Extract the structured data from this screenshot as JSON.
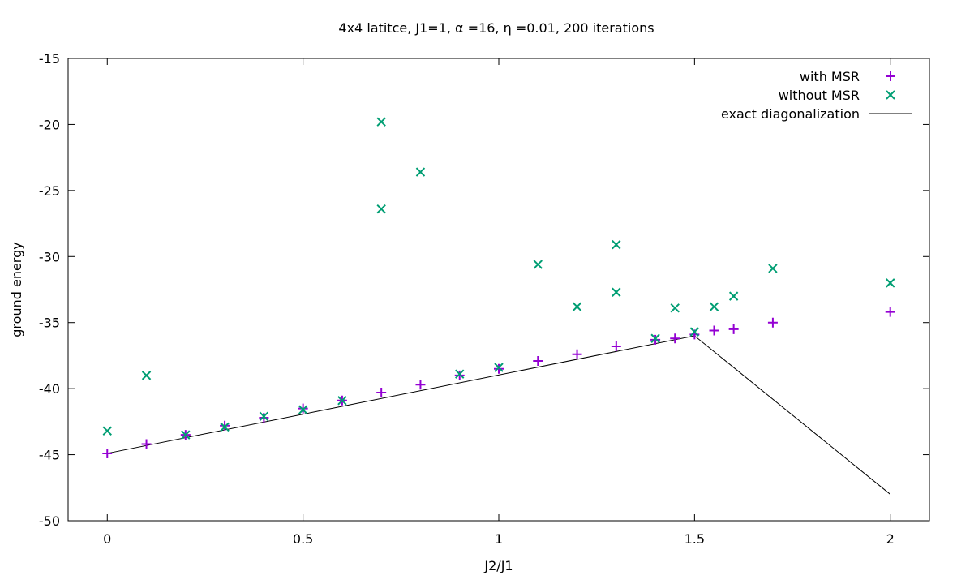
{
  "chart_data": {
    "type": "scatter",
    "title": "4x4 latitce, J1=1, α =16, η =0.01, 200 iterations",
    "xlabel": "J2/J1",
    "ylabel": "ground energy",
    "xlim": [
      -0.1,
      2.1
    ],
    "ylim": [
      -50,
      -15
    ],
    "xticks": [
      0,
      0.5,
      1,
      1.5,
      2
    ],
    "xtick_labels": [
      "0",
      "0.5",
      "1",
      "1.5",
      "2"
    ],
    "yticks": [
      -50,
      -45,
      -40,
      -35,
      -30,
      -25,
      -20,
      -15
    ],
    "ytick_labels": [
      "-50",
      "-45",
      "-40",
      "-35",
      "-30",
      "-25",
      "-20",
      "-15"
    ],
    "grid": false,
    "legend_position": "top-right",
    "series": [
      {
        "name": "with MSR",
        "marker": "plus",
        "color": "#9400D3",
        "points": [
          [
            0,
            -44.9
          ],
          [
            0.1,
            -44.2
          ],
          [
            0.2,
            -43.5
          ],
          [
            0.3,
            -42.8
          ],
          [
            0.4,
            -42.2
          ],
          [
            0.5,
            -41.5
          ],
          [
            0.6,
            -40.9
          ],
          [
            0.7,
            -40.3
          ],
          [
            0.8,
            -39.7
          ],
          [
            0.9,
            -39.0
          ],
          [
            1.0,
            -38.5
          ],
          [
            1.1,
            -37.9
          ],
          [
            1.2,
            -37.4
          ],
          [
            1.3,
            -36.8
          ],
          [
            1.4,
            -36.3
          ],
          [
            1.45,
            -36.2
          ],
          [
            1.5,
            -35.9
          ],
          [
            1.55,
            -35.6
          ],
          [
            1.6,
            -35.5
          ],
          [
            1.7,
            -35.0
          ],
          [
            2.0,
            -34.2
          ]
        ]
      },
      {
        "name": "without MSR",
        "marker": "cross",
        "color": "#009E73",
        "points": [
          [
            0,
            -43.2
          ],
          [
            0.1,
            -39.0
          ],
          [
            0.2,
            -43.5
          ],
          [
            0.3,
            -42.9
          ],
          [
            0.4,
            -42.1
          ],
          [
            0.5,
            -41.6
          ],
          [
            0.6,
            -40.9
          ],
          [
            0.7,
            -26.4
          ],
          [
            0.7,
            -19.8
          ],
          [
            0.8,
            -23.6
          ],
          [
            0.9,
            -38.9
          ],
          [
            1.0,
            -38.4
          ],
          [
            1.1,
            -30.6
          ],
          [
            1.2,
            -33.8
          ],
          [
            1.3,
            -32.7
          ],
          [
            1.3,
            -29.1
          ],
          [
            1.4,
            -36.2
          ],
          [
            1.45,
            -33.9
          ],
          [
            1.5,
            -35.7
          ],
          [
            1.55,
            -33.8
          ],
          [
            1.6,
            -33.0
          ],
          [
            1.7,
            -30.9
          ],
          [
            2.0,
            -32.0
          ]
        ]
      },
      {
        "name": "exact diagonalization",
        "marker": "line",
        "color": "#000000",
        "points": [
          [
            0,
            -44.9
          ],
          [
            1.5,
            -36.0
          ],
          [
            2.0,
            -48.0
          ]
        ]
      }
    ]
  }
}
